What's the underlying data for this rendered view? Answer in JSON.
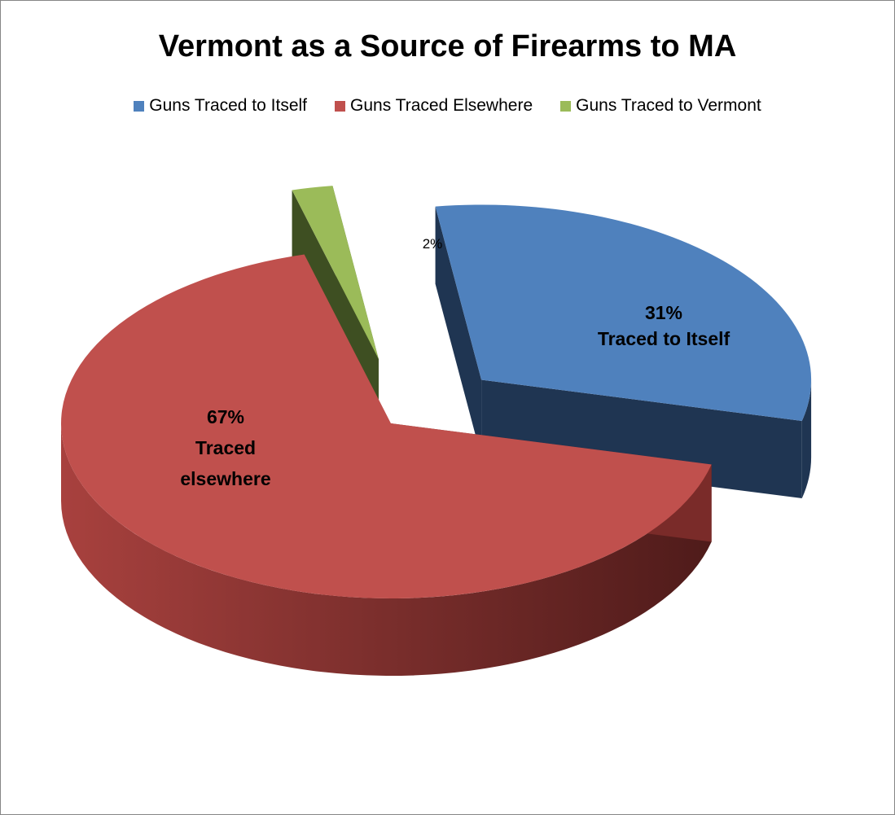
{
  "chart_data": {
    "type": "pie",
    "title": "Vermont as a Source of Firearms to MA",
    "legend_position": "top",
    "series": [
      {
        "name": "Guns Traced to Itself",
        "value": 31,
        "color": "#4F81BD",
        "side_color": "#1F3552",
        "label_lines": [
          "31%",
          "Traced to Itself"
        ]
      },
      {
        "name": "Guns Traced Elsewhere",
        "value": 67,
        "color": "#C0504D",
        "side_color": "#7A2B29",
        "label_lines": [
          "67%",
          "Traced",
          "elsewhere"
        ]
      },
      {
        "name": "Guns Traced to Vermont",
        "value": 2,
        "color": "#9BBB59",
        "side_color": "#3E4F22",
        "label_lines": [
          "2%"
        ]
      }
    ]
  }
}
